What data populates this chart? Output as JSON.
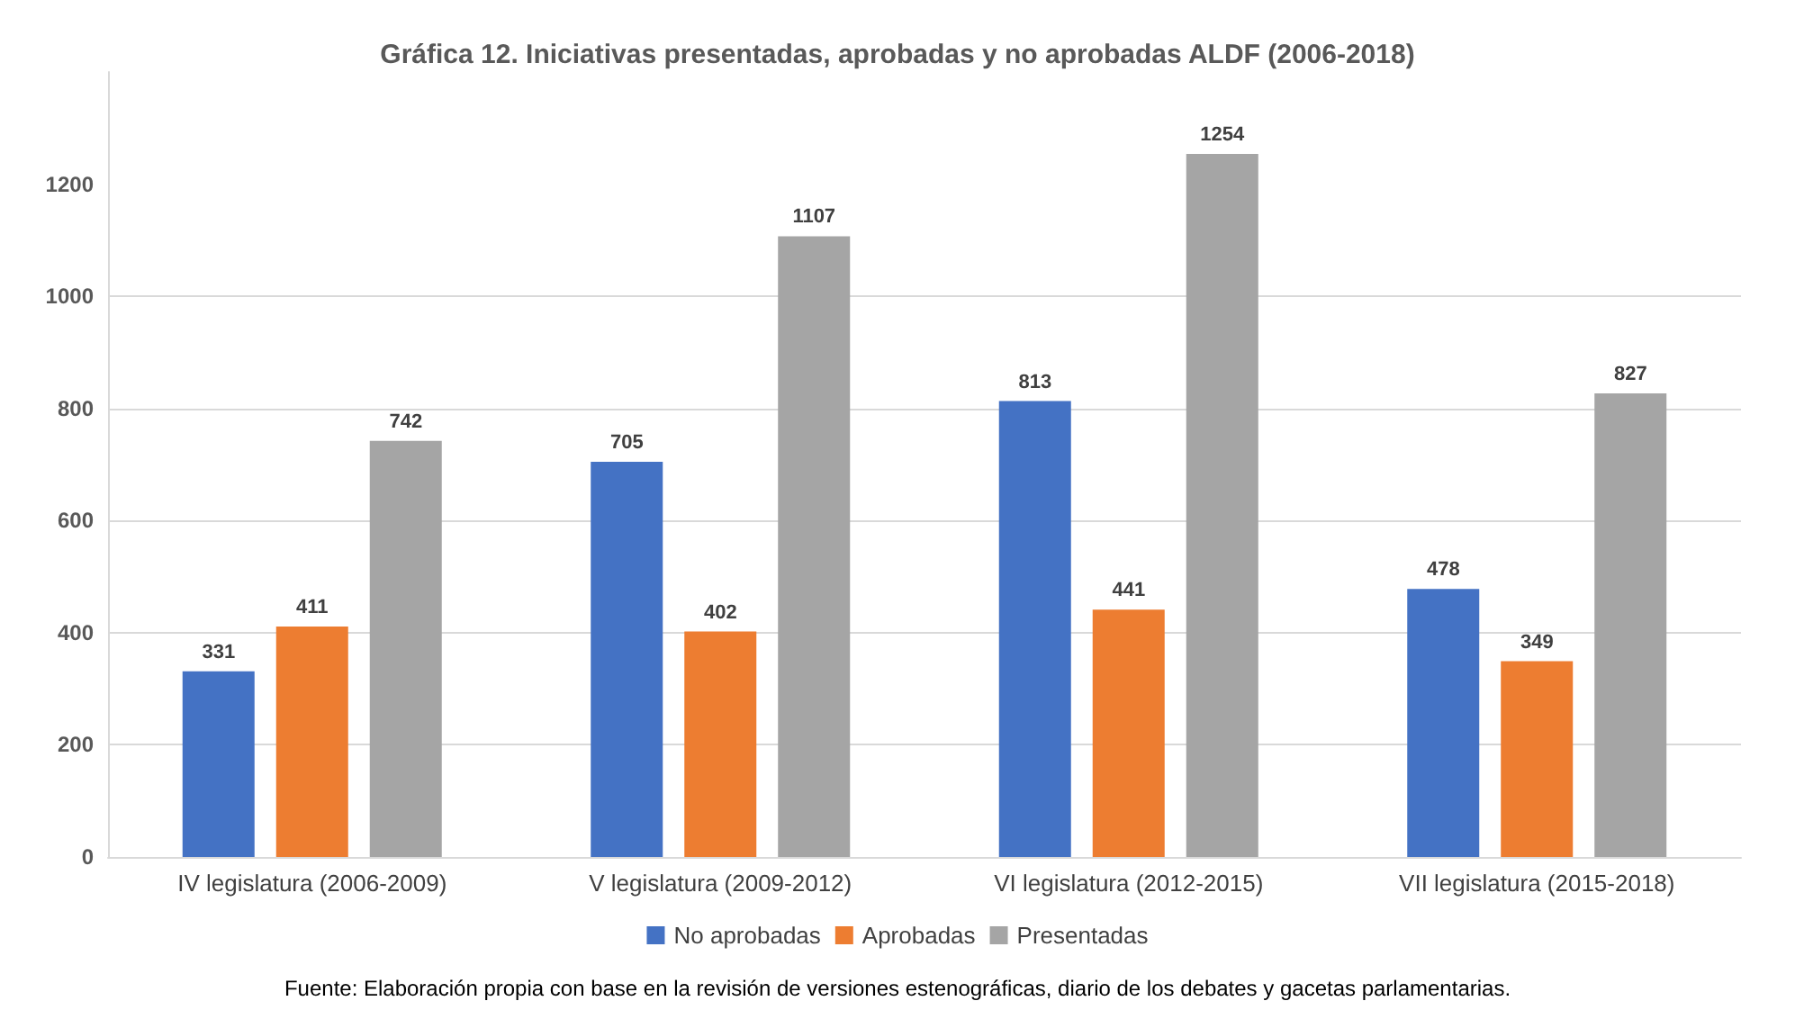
{
  "chart_data": {
    "type": "bar",
    "title": "Gráfica 12. Iniciativas presentadas, aprobadas y no aprobadas ALDF (2006-2018)",
    "categories": [
      "IV legislatura (2006-2009)",
      "V legislatura (2009-2012)",
      "VI legislatura (2012-2015)",
      "VII legislatura (2015-2018)"
    ],
    "series": [
      {
        "name": "No aprobadas",
        "color": "#4472c4",
        "values": [
          331,
          705,
          813,
          478
        ]
      },
      {
        "name": "Aprobadas",
        "color": "#ed7d31",
        "values": [
          411,
          402,
          441,
          349
        ]
      },
      {
        "name": "Presentadas",
        "color": "#a5a5a5",
        "values": [
          742,
          1107,
          1254,
          827
        ]
      }
    ],
    "ylim": [
      0,
      1400
    ],
    "yticks": [
      0,
      200,
      400,
      600,
      800,
      1000,
      1200
    ],
    "grid": "y",
    "legend": "bottom",
    "data_labels": true,
    "annotations": [
      "Fuente: Elaboración propia con base en la revisión de versiones estenográficas, diario de los debates y gacetas parlamentarias."
    ]
  }
}
